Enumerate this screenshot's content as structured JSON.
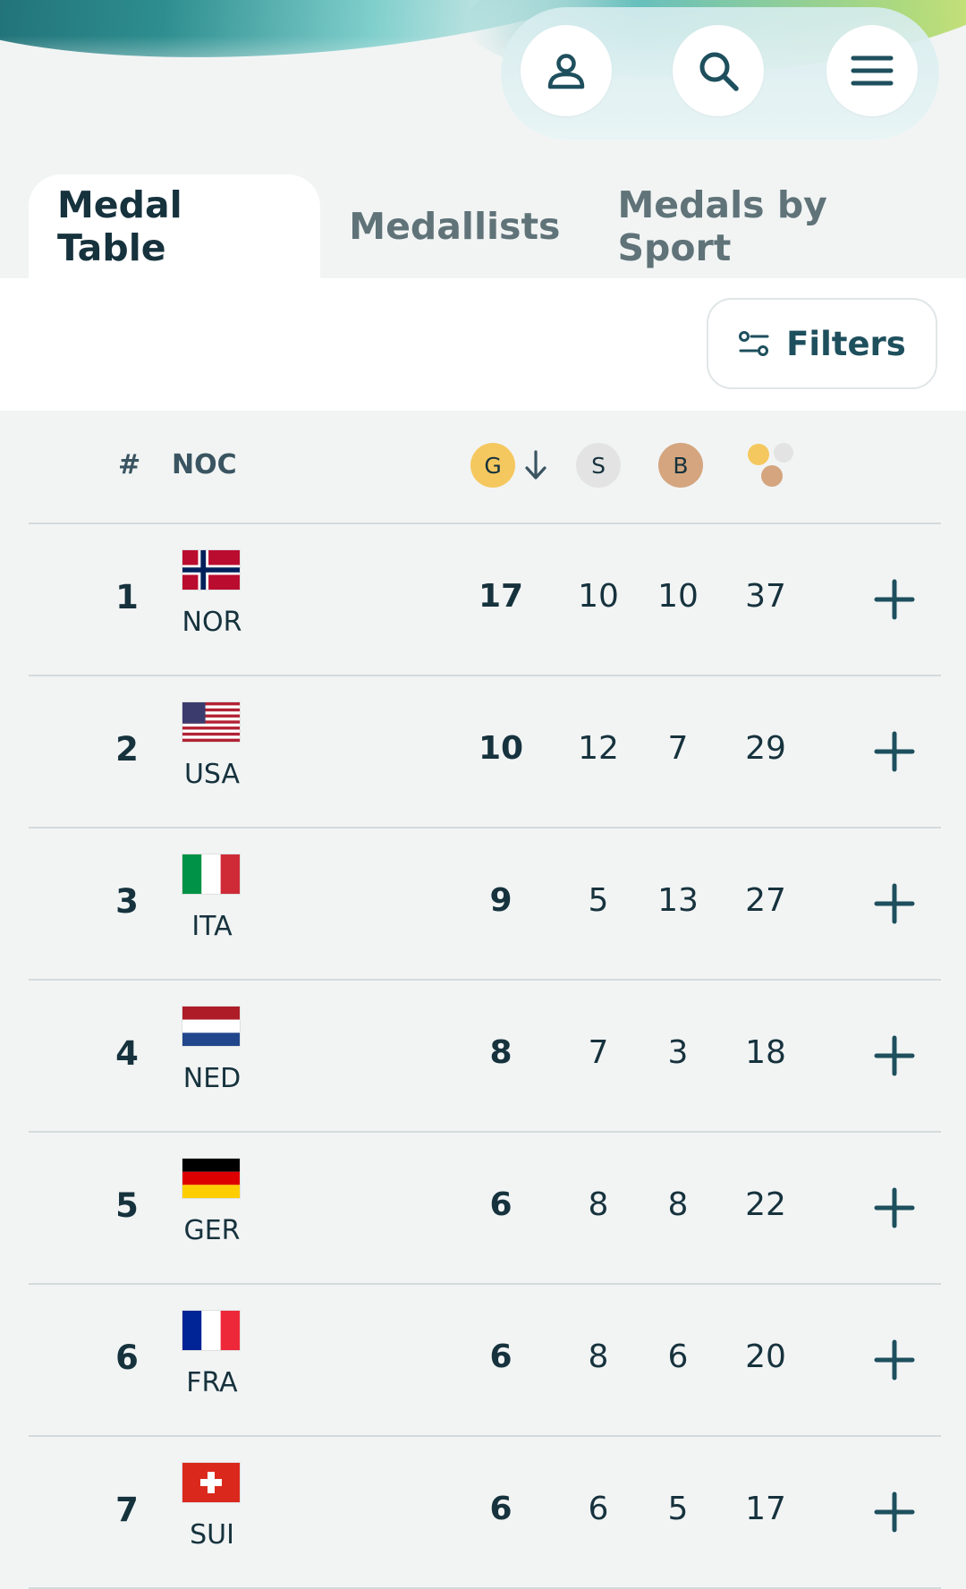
{
  "header_icons": {
    "profile": "user-icon",
    "search": "search-icon",
    "menu": "menu-icon"
  },
  "tabs": [
    {
      "label": "Medal Table",
      "active": true
    },
    {
      "label": "Medallists",
      "active": false
    },
    {
      "label": "Medals by Sport",
      "active": false
    }
  ],
  "filters": {
    "label": "Filters",
    "icon": "filter-sliders-icon"
  },
  "table": {
    "headers": {
      "rank": "#",
      "noc": "NOC",
      "gold": "G",
      "silver": "S",
      "bronze": "B"
    },
    "sort_indicator": "arrow-down-icon",
    "colors": {
      "gold": "#f5c85f",
      "silver": "#e3e3e3",
      "bronze": "#d4a57e",
      "text": "#16323d"
    },
    "rows": [
      {
        "rank": "1",
        "noc": "NOR",
        "gold": "17",
        "silver": "10",
        "bronze": "10",
        "total": "37",
        "flag": "flag-norway-icon"
      },
      {
        "rank": "2",
        "noc": "USA",
        "gold": "10",
        "silver": "12",
        "bronze": "7",
        "total": "29",
        "flag": "flag-usa-icon"
      },
      {
        "rank": "3",
        "noc": "ITA",
        "gold": "9",
        "silver": "5",
        "bronze": "13",
        "total": "27",
        "flag": "flag-italy-icon"
      },
      {
        "rank": "4",
        "noc": "NED",
        "gold": "8",
        "silver": "7",
        "bronze": "3",
        "total": "18",
        "flag": "flag-netherlands-icon"
      },
      {
        "rank": "5",
        "noc": "GER",
        "gold": "6",
        "silver": "8",
        "bronze": "8",
        "total": "22",
        "flag": "flag-germany-icon"
      },
      {
        "rank": "6",
        "noc": "FRA",
        "gold": "6",
        "silver": "8",
        "bronze": "6",
        "total": "20",
        "flag": "flag-france-icon"
      },
      {
        "rank": "7",
        "noc": "SUI",
        "gold": "6",
        "silver": "6",
        "bronze": "5",
        "total": "17",
        "flag": "flag-switzerland-icon"
      }
    ]
  }
}
